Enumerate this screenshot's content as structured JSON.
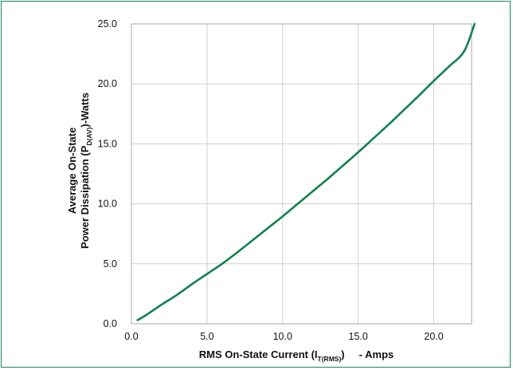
{
  "chart_data": {
    "type": "line",
    "title": "",
    "xlabel": {
      "main": "RMS On-State Current (I",
      "sub": "T(RMS)",
      "tail": ")     - Amps"
    },
    "ylabel": {
      "line1": "Average On-State",
      "line2_main": "Power Dissipation (P",
      "line2_sub": "D(AV)",
      "line2_tail": ")-Watts"
    },
    "xlim": [
      0,
      22.5
    ],
    "ylim": [
      0,
      25
    ],
    "x_ticks": [
      "0.0",
      "5.0",
      "10.0",
      "15.0",
      "20.0"
    ],
    "y_ticks": [
      "0.0",
      "5.0",
      "10.0",
      "15.0",
      "20.0",
      "25.0"
    ],
    "grid": true,
    "legend": "none",
    "series": [
      {
        "color": "#13804f",
        "x": [
          0.4,
          1,
          2,
          3,
          4,
          5,
          6,
          7,
          8,
          9,
          10,
          11,
          12,
          13,
          14,
          15,
          16,
          17,
          18,
          19,
          20,
          21,
          22,
          22.7
        ],
        "y": [
          0.3,
          0.75,
          1.6,
          2.4,
          3.3,
          4.15,
          5.0,
          5.95,
          6.95,
          7.95,
          8.95,
          10.0,
          11.05,
          12.1,
          13.2,
          14.3,
          15.45,
          16.6,
          17.8,
          19.0,
          20.25,
          21.45,
          22.7,
          25.0
        ]
      }
    ]
  }
}
